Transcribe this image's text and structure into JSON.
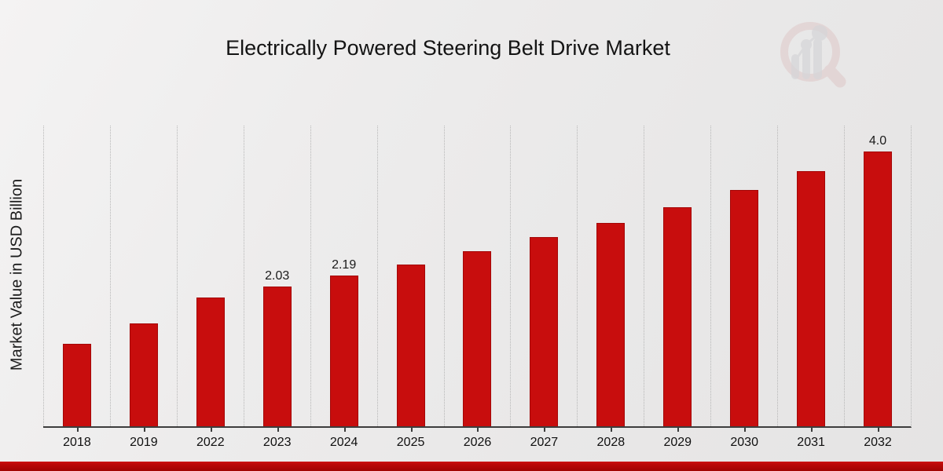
{
  "title": "Electrically Powered Steering Belt Drive Market",
  "y_axis_label": "Market Value in USD Billion",
  "chart_data": {
    "type": "bar",
    "title": "Electrically Powered Steering Belt Drive Market",
    "xlabel": "",
    "ylabel": "Market Value in USD Billion",
    "categories": [
      "2018",
      "2019",
      "2022",
      "2023",
      "2024",
      "2025",
      "2026",
      "2027",
      "2028",
      "2029",
      "2030",
      "2031",
      "2032"
    ],
    "values": [
      1.2,
      1.5,
      1.88,
      2.03,
      2.19,
      2.36,
      2.55,
      2.75,
      2.96,
      3.19,
      3.44,
      3.71,
      4.0
    ],
    "bar_labels": [
      "",
      "",
      "",
      "2.03",
      "2.19",
      "",
      "",
      "",
      "",
      "",
      "",
      "",
      "4.0"
    ],
    "ylim": [
      0,
      4.4
    ],
    "y_ticks_visible": false,
    "grid": "vertical-dotted",
    "legend": "none",
    "bar_color": "#c80d0d",
    "bar_edge_color": "#a40707",
    "axis_color": "#3d3d3d"
  },
  "footer": {
    "band_color": "#b00606"
  },
  "logo": {
    "name": "magnifier-bar-chart-watermark",
    "ring_color": "#c97b7b",
    "bars_color": "#b3b3b9"
  }
}
